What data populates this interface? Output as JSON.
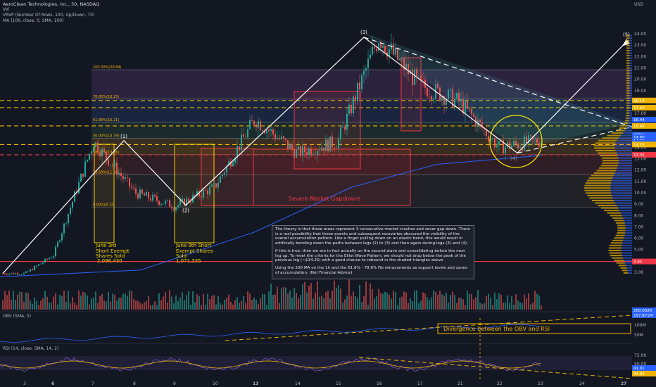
{
  "header": {
    "title": "AeroClean Technologies, Inc., 30, NASDAQ",
    "vol": "Vol",
    "vrvp": "VRVP (Number Of Rows, 100, Up/Down, 70)",
    "ma": "MA (100, close, 0, SMA, 100)"
  },
  "axis": {
    "currency": "USD",
    "price_ticks": [
      "24.00",
      "23.00",
      "22.00",
      "21.00",
      "20.00",
      "19.00",
      "18.00",
      "17.00",
      "16.00",
      "15.00",
      "14.00",
      "13.00",
      "12.00",
      "11.00",
      "10.00",
      "9.00",
      "8.00",
      "7.00",
      "6.00",
      "5.00",
      "4.00",
      "3.00"
    ],
    "obv_ticks": [
      "100M",
      "50M"
    ],
    "rsi_ticks": [
      "75.00",
      "50.00",
      "25.00"
    ],
    "x_ticks": [
      "3",
      "6",
      "7",
      "8",
      "9",
      "10",
      "13",
      "14",
      "15",
      "16",
      "17",
      "21",
      "22",
      "23",
      "24",
      "27"
    ]
  },
  "price_labels": [
    {
      "text": "18.13",
      "color": "#f0b400"
    },
    {
      "text": "17.50",
      "color": "#f0b400"
    },
    {
      "text": "16.44",
      "color": "#2962ff"
    },
    {
      "text": "15.89",
      "color": "#f0b400"
    },
    {
      "text": "AERC",
      "color": "#2962ff"
    },
    {
      "text": "14.90",
      "color": "#2962ff"
    },
    {
      "text": "14.59",
      "color": "#2962ff"
    },
    {
      "text": "Post",
      "color": "#2962ff"
    },
    {
      "text": "14.25",
      "color": "#f0b400"
    },
    {
      "text": "13.35",
      "color": "#f23645"
    },
    {
      "text": "3.95",
      "color": "#f23645"
    },
    {
      "text": "200.002K",
      "color": "#2962ff"
    },
    {
      "text": "157.871M",
      "color": "#2962ff"
    },
    {
      "text": "41.01",
      "color": "#2962ff"
    },
    {
      "text": "34.66",
      "color": "#f0b400"
    }
  ],
  "fib_labels": [
    "100.00%(20.84)",
    "78.60%(18.25)",
    "61.80%(16.21)",
    "50.00%(14.79)",
    "38.20%(13.36)",
    "23.60%(11.58)",
    "0.00%(8.72)"
  ],
  "waves": [
    "(1)",
    "(2)",
    "(3)",
    "(4)",
    "(5)"
  ],
  "annotations": {
    "june3": "June 3rd Short Exempt Shares Sold",
    "june3_value": "2,096,430",
    "june9": "June 9th Short Exempt Shares Sold",
    "june9_value": "1,071,335",
    "gapdowns": "Severe Market Gapdowns",
    "divergence": "Divergence between the OBV and RSI",
    "obv_label": "OBV (SMA, 5)",
    "rsi_label": "RSI (14, close, SMA, 14, 2)"
  },
  "note": {
    "p1": "The theory is that these areas represent 3 consecutive market crashes and sever gap down. There is a real possibility that these events and subsequent recoveries obscured the visibility of the overall accumulation pattern. Like a finger pulling down on an elastic band, this would result in artificially bending down the paths between legs (2) to (3) and then again during legs (3) and (4).",
    "p2": "If this is true, then we are in fact actually on the second wave and consolidating before the next leg up. To meet the criteria for the Elliot Wave Pattern, we should not drop below the peak of the previous leg (~$14.25) with a good chance to rebound in the shaded triangles above",
    "p3": "Using the 200 MA on the 1h and the 61.8% - 78.6% Fib retracements as support levels and zones of accumulation. (Not Financial Advice)"
  },
  "colors": {
    "up": "#26a69a",
    "down": "#ef5350",
    "fib": "#f0b400",
    "red": "#f23645",
    "blue": "#2962ff",
    "bg": "#131722"
  },
  "chart_data": {
    "type": "candlestick",
    "ylim": [
      2.5,
      24.5
    ],
    "price_points": [
      {
        "x": "3",
        "price": 2.9
      },
      {
        "x": "6",
        "price": 4.5
      },
      {
        "x": "7",
        "price": 14.5
      },
      {
        "x": "8",
        "price": 10.0
      },
      {
        "x": "9",
        "price": 8.8
      },
      {
        "x": "10",
        "price": 10.5
      },
      {
        "x": "13",
        "price": 16.5
      },
      {
        "x": "14",
        "price": 13.5
      },
      {
        "x": "15",
        "price": 14.5
      },
      {
        "x": "16",
        "price": 23.7
      },
      {
        "x": "17",
        "price": 19.5
      },
      {
        "x": "21",
        "price": 18.0
      },
      {
        "x": "22",
        "price": 14.0
      },
      {
        "x": "23",
        "price": 14.6
      }
    ],
    "elliott_wave": [
      {
        "label": "(1)",
        "price": 14.6
      },
      {
        "label": "(2)",
        "price": 8.9
      },
      {
        "label": "(3)",
        "price": 23.7
      },
      {
        "label": "(4)",
        "price": 13.5
      },
      {
        "label": "(5)",
        "price": 23.3
      }
    ],
    "fib_levels": [
      {
        "pct": "100.00%",
        "price": 20.84
      },
      {
        "pct": "78.60%",
        "price": 18.25
      },
      {
        "pct": "61.80%",
        "price": 16.21
      },
      {
        "pct": "50.00%",
        "price": 14.79
      },
      {
        "pct": "38.20%",
        "price": 13.36
      },
      {
        "pct": "23.60%",
        "price": 11.58
      },
      {
        "pct": "0.00%",
        "price": 8.72
      }
    ],
    "horizontal_levels": [
      18.13,
      17.5,
      15.89,
      14.25,
      13.35,
      3.95
    ]
  }
}
